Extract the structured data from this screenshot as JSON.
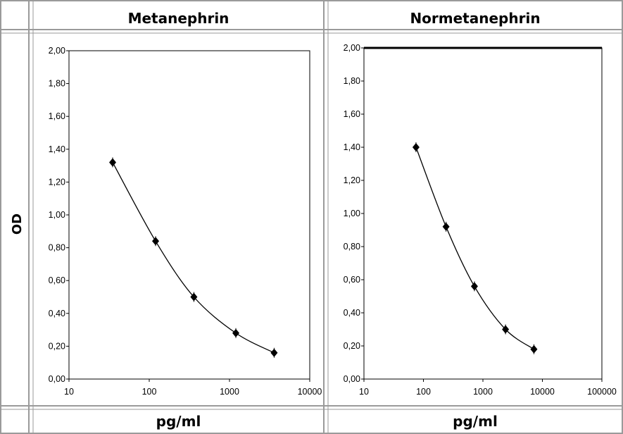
{
  "table": {
    "header_left": "Metanephrin",
    "header_right": "Normetanephrin",
    "row_label": "OD",
    "footer_left": "pg/ml",
    "footer_right": "pg/ml"
  },
  "chart_data": [
    {
      "type": "line",
      "title": "Metanephrin",
      "xlabel": "pg/ml",
      "ylabel": "OD",
      "x_scale": "log",
      "xlim": [
        10,
        10000
      ],
      "ylim": [
        0,
        2
      ],
      "grid": false,
      "x_ticks": [
        "10",
        "100",
        "1000",
        "10000"
      ],
      "y_ticks": [
        "0,00",
        "0,20",
        "0,40",
        "0,60",
        "0,80",
        "1,00",
        "1,20",
        "1,40",
        "1,60",
        "1,80",
        "2,00"
      ],
      "series": [
        {
          "x": [
            35,
            120,
            360,
            1200,
            3600
          ],
          "y": [
            1.32,
            0.84,
            0.5,
            0.28,
            0.16
          ]
        }
      ]
    },
    {
      "type": "line",
      "title": "Normetanephrin",
      "xlabel": "pg/ml",
      "ylabel": "OD",
      "x_scale": "log",
      "xlim": [
        10,
        100000
      ],
      "ylim": [
        0,
        2
      ],
      "grid": false,
      "x_ticks": [
        "10",
        "100",
        "1000",
        "10000",
        "100000"
      ],
      "y_ticks": [
        "0,00",
        "0,20",
        "0,40",
        "0,60",
        "0,80",
        "1,00",
        "1,20",
        "1,40",
        "1,60",
        "1,80",
        "2,00"
      ],
      "series": [
        {
          "x": [
            75,
            240,
            720,
            2400,
            7200
          ],
          "y": [
            1.4,
            0.92,
            0.56,
            0.3,
            0.18
          ]
        }
      ]
    }
  ]
}
